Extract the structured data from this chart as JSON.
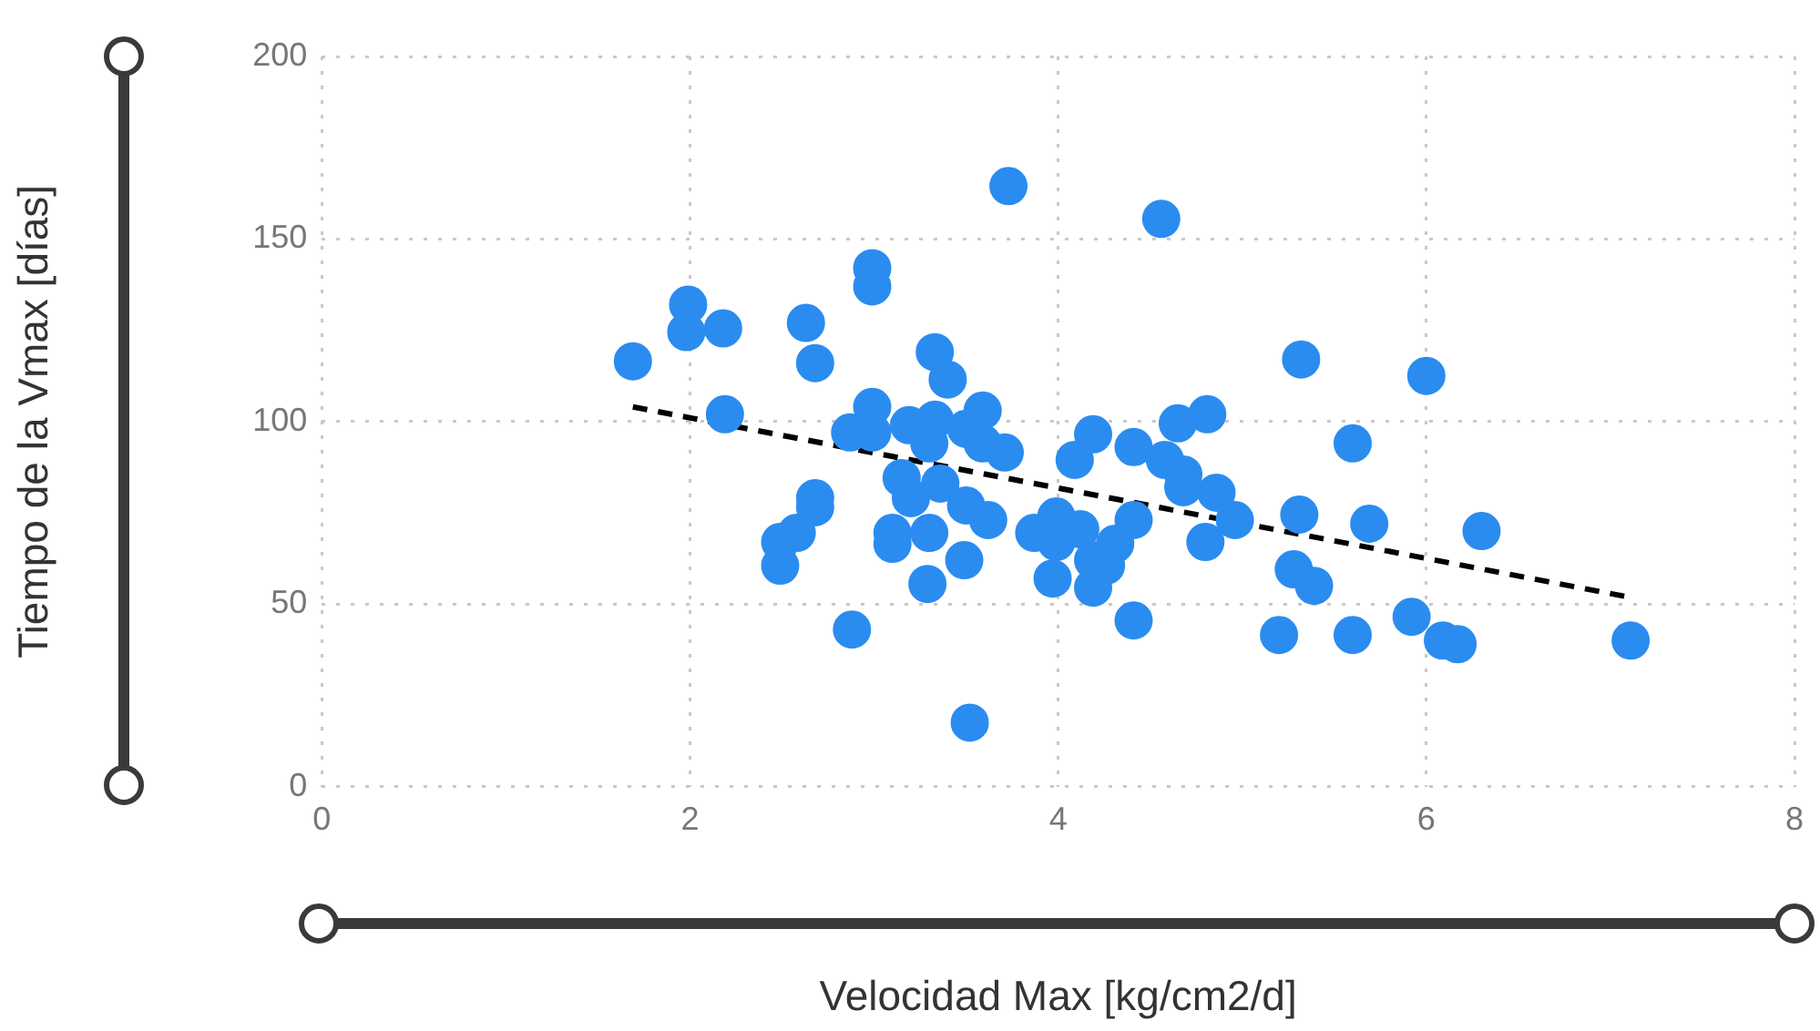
{
  "chart_data": {
    "type": "scatter",
    "xlabel": "Velocidad Max [kg/cm2/d]",
    "ylabel": "Tiempo de la Vmax [días]",
    "xlim": [
      0,
      8
    ],
    "xticks": [
      0,
      2,
      4,
      6,
      8
    ],
    "ylim": [
      0,
      200
    ],
    "yticks": [
      0,
      50,
      100,
      150,
      200
    ],
    "grid": true,
    "legend": false,
    "series": [
      {
        "type": "scatter",
        "marker": "circle",
        "color": "#2b8cf0",
        "x": [
          1.69,
          1.99,
          1.98,
          2.18,
          2.19,
          2.63,
          2.68,
          2.68,
          2.68,
          2.58,
          2.49,
          2.49,
          2.88,
          2.99,
          2.99,
          2.87,
          2.99,
          2.99,
          3.33,
          3.4,
          3.19,
          3.33,
          3.3,
          3.15,
          3.2,
          3.36,
          3.1,
          3.1,
          3.3,
          3.29,
          3.5,
          3.49,
          3.59,
          3.5,
          3.59,
          3.71,
          3.62,
          3.73,
          3.52,
          3.87,
          3.97,
          3.99,
          3.99,
          4.12,
          4.19,
          4.19,
          4.26,
          4.31,
          4.09,
          4.19,
          4.41,
          4.41,
          4.41,
          4.56,
          4.65,
          4.81,
          4.58,
          4.68,
          4.68,
          4.8,
          4.86,
          4.96,
          5.32,
          6.0,
          5.6,
          5.31,
          5.69,
          6.3,
          5.28,
          5.39,
          5.92,
          5.2,
          5.6,
          6.09,
          6.17,
          7.11
        ],
        "values": [
          116.5,
          132,
          124.5,
          125.5,
          102,
          127,
          116,
          79,
          76.5,
          69.5,
          67,
          60.5,
          43,
          142,
          137,
          97,
          104,
          97,
          119,
          111.5,
          99,
          100.5,
          94,
          84.5,
          79,
          83,
          69.5,
          66.5,
          69.5,
          55.5,
          77,
          62,
          103,
          98,
          94,
          91.5,
          73,
          164.5,
          17.5,
          69.5,
          57,
          74,
          67,
          70.5,
          54.5,
          62,
          60.5,
          66.5,
          89.5,
          96.5,
          93,
          73,
          45.5,
          155.5,
          99.5,
          102,
          89.5,
          85.5,
          82,
          67,
          80.5,
          73,
          117,
          112.5,
          94,
          74.5,
          72,
          70,
          59.5,
          55,
          46.5,
          41.5,
          41.5,
          40,
          39,
          40
        ]
      },
      {
        "type": "line",
        "marker": "none",
        "color": "#000000",
        "line_style": "dashed",
        "x": [
          1.69,
          7.09
        ],
        "values": [
          104,
          52
        ]
      }
    ]
  }
}
